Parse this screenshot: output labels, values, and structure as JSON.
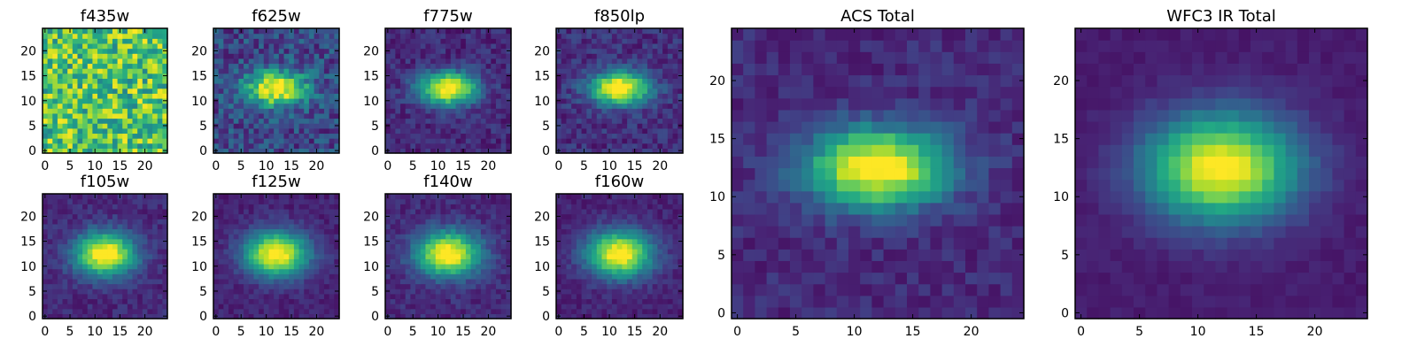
{
  "chart_data": [
    {
      "type": "heatmap",
      "title": "f435w",
      "grid_size": 25,
      "xlim": [
        -0.5,
        24.5
      ],
      "ylim": [
        -0.5,
        24.5
      ],
      "xticks": [
        0,
        5,
        10,
        15,
        20
      ],
      "yticks": [
        0,
        5,
        10,
        15,
        20
      ],
      "source": {
        "center": [
          12,
          12.5
        ],
        "sigma": [
          5,
          2.8
        ],
        "peak": 0.0,
        "background": 0.72,
        "noise": 0.28
      }
    },
    {
      "type": "heatmap",
      "title": "f625w",
      "grid_size": 25,
      "xlim": [
        -0.5,
        24.5
      ],
      "ylim": [
        -0.5,
        24.5
      ],
      "xticks": [
        0,
        5,
        10,
        15,
        20
      ],
      "yticks": [
        0,
        5,
        10,
        15,
        20
      ],
      "source": {
        "center": [
          12,
          12.5
        ],
        "sigma": [
          4.2,
          2.4
        ],
        "peak": 0.85,
        "background": 0.22,
        "noise": 0.16
      }
    },
    {
      "type": "heatmap",
      "title": "f775w",
      "grid_size": 25,
      "xlim": [
        -0.5,
        24.5
      ],
      "ylim": [
        -0.5,
        24.5
      ],
      "xticks": [
        0,
        5,
        10,
        15,
        20
      ],
      "yticks": [
        0,
        5,
        10,
        15,
        20
      ],
      "source": {
        "center": [
          12,
          12.5
        ],
        "sigma": [
          4.0,
          2.3
        ],
        "peak": 0.95,
        "background": 0.12,
        "noise": 0.09
      }
    },
    {
      "type": "heatmap",
      "title": "f850lp",
      "grid_size": 25,
      "xlim": [
        -0.5,
        24.5
      ],
      "ylim": [
        -0.5,
        24.5
      ],
      "xticks": [
        0,
        5,
        10,
        15,
        20
      ],
      "yticks": [
        0,
        5,
        10,
        15,
        20
      ],
      "source": {
        "center": [
          12,
          12.5
        ],
        "sigma": [
          4.0,
          2.3
        ],
        "peak": 0.95,
        "background": 0.14,
        "noise": 0.1
      }
    },
    {
      "type": "heatmap",
      "title": "f105w",
      "grid_size": 25,
      "xlim": [
        -0.5,
        24.5
      ],
      "ylim": [
        -0.5,
        24.5
      ],
      "xticks": [
        0,
        5,
        10,
        15,
        20
      ],
      "yticks": [
        0,
        5,
        10,
        15,
        20
      ],
      "source": {
        "center": [
          12,
          12.5
        ],
        "sigma": [
          4.2,
          3.0
        ],
        "peak": 0.95,
        "background": 0.12,
        "noise": 0.07
      }
    },
    {
      "type": "heatmap",
      "title": "f125w",
      "grid_size": 25,
      "xlim": [
        -0.5,
        24.5
      ],
      "ylim": [
        -0.5,
        24.5
      ],
      "xticks": [
        0,
        5,
        10,
        15,
        20
      ],
      "yticks": [
        0,
        5,
        10,
        15,
        20
      ],
      "source": {
        "center": [
          12,
          12.5
        ],
        "sigma": [
          4.4,
          3.1
        ],
        "peak": 0.95,
        "background": 0.1,
        "noise": 0.06
      }
    },
    {
      "type": "heatmap",
      "title": "f140w",
      "grid_size": 25,
      "xlim": [
        -0.5,
        24.5
      ],
      "ylim": [
        -0.5,
        24.5
      ],
      "xticks": [
        0,
        5,
        10,
        15,
        20
      ],
      "yticks": [
        0,
        5,
        10,
        15,
        20
      ],
      "source": {
        "center": [
          12,
          12.5
        ],
        "sigma": [
          4.4,
          3.1
        ],
        "peak": 0.95,
        "background": 0.12,
        "noise": 0.07
      }
    },
    {
      "type": "heatmap",
      "title": "f160w",
      "grid_size": 25,
      "xlim": [
        -0.5,
        24.5
      ],
      "ylim": [
        -0.5,
        24.5
      ],
      "xticks": [
        0,
        5,
        10,
        15,
        20
      ],
      "yticks": [
        0,
        5,
        10,
        15,
        20
      ],
      "source": {
        "center": [
          12,
          12.5
        ],
        "sigma": [
          4.5,
          3.2
        ],
        "peak": 0.95,
        "background": 0.1,
        "noise": 0.06
      }
    },
    {
      "type": "heatmap",
      "title": "ACS Total",
      "grid_size": 25,
      "xlim": [
        -0.5,
        24.5
      ],
      "ylim": [
        -0.5,
        24.5
      ],
      "xticks": [
        0,
        5,
        10,
        15,
        20
      ],
      "yticks": [
        0,
        5,
        10,
        15,
        20
      ],
      "source": {
        "center": [
          12,
          12.5
        ],
        "sigma": [
          4.2,
          2.4
        ],
        "peak": 0.95,
        "background": 0.12,
        "noise": 0.07
      }
    },
    {
      "type": "heatmap",
      "title": "WFC3 IR Total",
      "grid_size": 25,
      "xlim": [
        -0.5,
        24.5
      ],
      "ylim": [
        -0.5,
        24.5
      ],
      "xticks": [
        0,
        5,
        10,
        15,
        20
      ],
      "yticks": [
        0,
        5,
        10,
        15,
        20
      ],
      "source": {
        "center": [
          12,
          12.5
        ],
        "sigma": [
          4.5,
          3.2
        ],
        "peak": 0.95,
        "background": 0.08,
        "noise": 0.03
      }
    }
  ],
  "colormap": "viridis",
  "colors": {
    "frame": "#000000",
    "background": "#ffffff"
  }
}
